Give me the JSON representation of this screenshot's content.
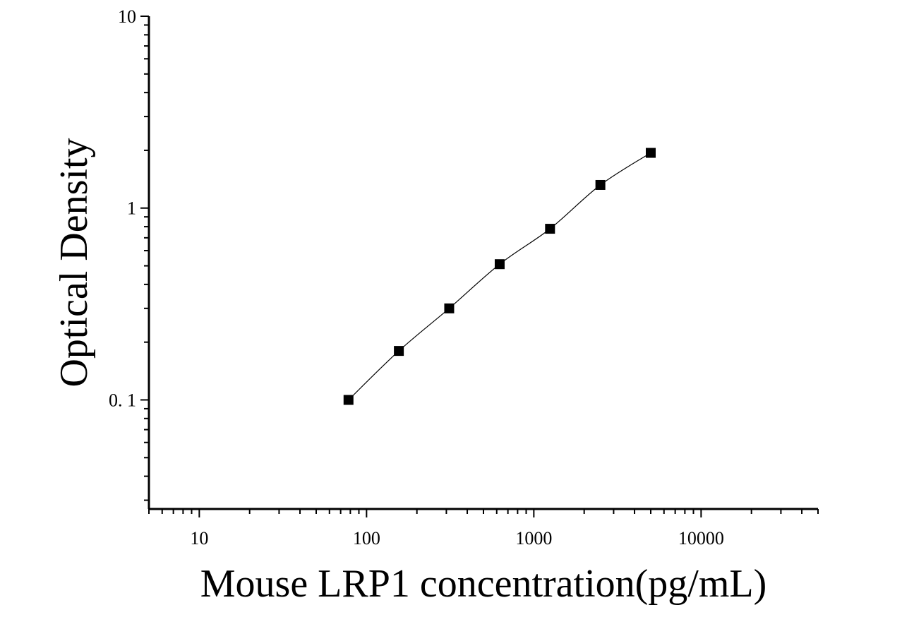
{
  "chart_data": {
    "type": "scatter",
    "title": "",
    "xlabel": "Mouse LRP1 concentration(pg/mL)",
    "ylabel": "Optical Density",
    "xscale": "log",
    "yscale": "log",
    "xlim": [
      5,
      50000
    ],
    "ylim": [
      0.027,
      10
    ],
    "x_ticks": [
      {
        "value": 10,
        "label": "10"
      },
      {
        "value": 100,
        "label": "100"
      },
      {
        "value": 1000,
        "label": "1000"
      },
      {
        "value": 10000,
        "label": "10000"
      }
    ],
    "y_ticks": [
      {
        "value": 0.1,
        "label": "0. 1"
      },
      {
        "value": 1,
        "label": "1"
      },
      {
        "value": 10,
        "label": "10"
      }
    ],
    "grid": false,
    "legend": "none",
    "marker": "square",
    "fit_line": true,
    "series": [
      {
        "x": [
          78,
          156,
          312,
          625,
          1250,
          2500,
          5000
        ],
        "y": [
          0.1,
          0.18,
          0.3,
          0.51,
          0.78,
          1.32,
          1.94
        ]
      }
    ],
    "colors": {
      "axis": "#000000",
      "marker": "#000000",
      "line": "#000000"
    }
  }
}
